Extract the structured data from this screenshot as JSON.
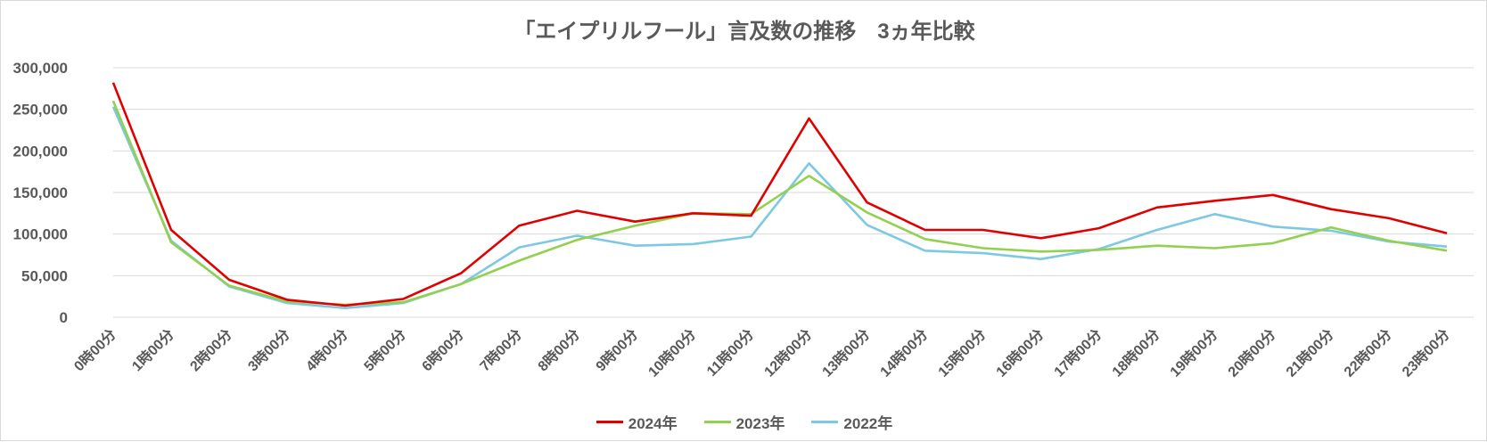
{
  "chart_data": {
    "type": "line",
    "title": "「エイプリルフール」言及数の推移　3ヵ年比較",
    "xlabel": "",
    "ylabel": "",
    "ylim": [
      0,
      300000
    ],
    "yticks": [
      "0",
      "50,000",
      "100,000",
      "150,000",
      "200,000",
      "250,000",
      "300,000"
    ],
    "categories": [
      "0時00分",
      "1時00分",
      "2時00分",
      "3時00分",
      "4時00分",
      "5時00分",
      "6時00分",
      "7時00分",
      "8時00分",
      "9時00分",
      "10時00分",
      "11時00分",
      "12時00分",
      "13時00分",
      "14時00分",
      "15時00分",
      "16時00分",
      "17時00分",
      "18時00分",
      "19時00分",
      "20時00分",
      "21時00分",
      "22時00分",
      "23時00分"
    ],
    "grid": true,
    "legend": "bottom",
    "series": [
      {
        "name": "2024年",
        "color": "#e00000",
        "values": [
          282000,
          105000,
          45000,
          21000,
          14000,
          22000,
          53000,
          110000,
          128000,
          115000,
          125000,
          122000,
          239000,
          138000,
          105000,
          105000,
          95000,
          107000,
          132000,
          140000,
          147000,
          130000,
          119000,
          101000
        ]
      },
      {
        "name": "2023年",
        "color": "#92d050",
        "values": [
          260000,
          90000,
          38000,
          19000,
          15000,
          18000,
          40000,
          68000,
          93000,
          110000,
          125000,
          124000,
          170000,
          126000,
          94000,
          83000,
          79000,
          81000,
          86000,
          83000,
          89000,
          108000,
          92000,
          80000
        ]
      },
      {
        "name": "2022年",
        "color": "#7ec8e3",
        "values": [
          253000,
          92000,
          37000,
          17000,
          11000,
          17000,
          40000,
          84000,
          98000,
          86000,
          88000,
          97000,
          185000,
          111000,
          80000,
          77000,
          70000,
          82000,
          105000,
          124000,
          109000,
          104000,
          91000,
          85000
        ]
      }
    ]
  }
}
